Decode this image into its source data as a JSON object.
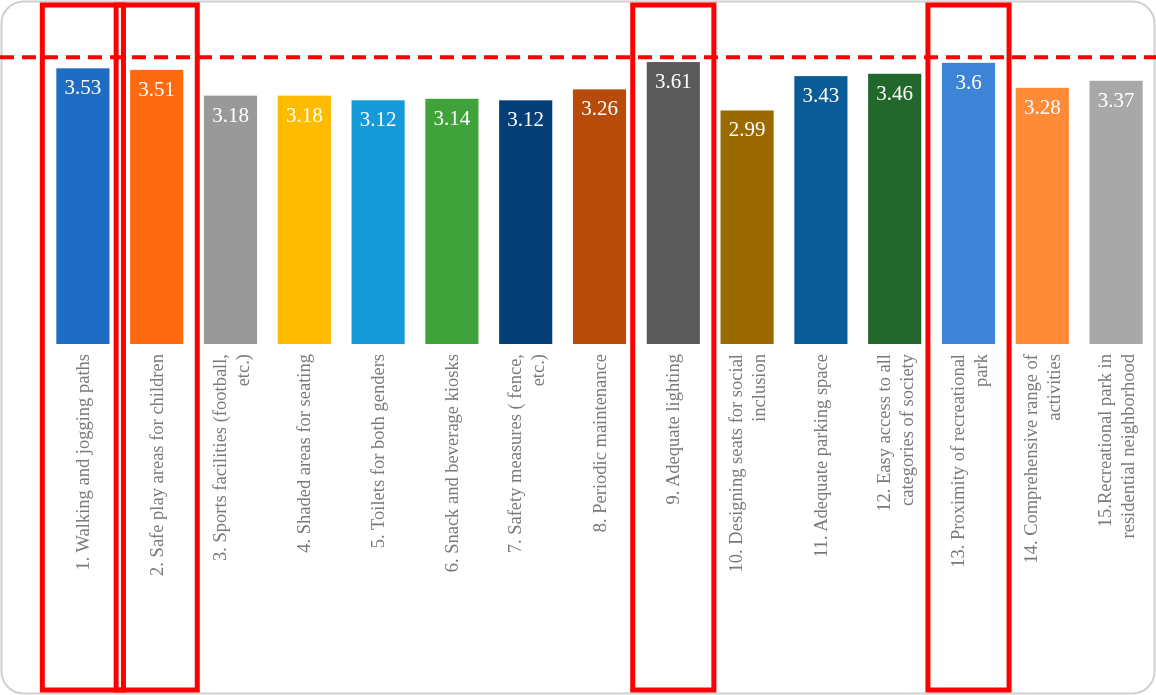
{
  "chart_data": {
    "type": "bar",
    "categories": [
      "1. Walking and jogging paths",
      "2. Safe play areas for children",
      "3. Sports facilities (football, etc.)",
      "4. Shaded areas for seating",
      "5. Toilets for both genders",
      "6. Snack and beverage kiosks",
      "7. Safety measures ( fence, etc.)",
      "8. Periodic maintenance",
      "9. Adequate lighting",
      "10. Designing seats for social inclusion",
      "11. Adequate parking space",
      "12. Easy access to all categories of society",
      "13. Proximity of recreational park",
      "14. Comprehensive range of activities",
      "15.Recreational park in residential neighborhood"
    ],
    "values": [
      3.53,
      3.51,
      3.18,
      3.18,
      3.12,
      3.14,
      3.12,
      3.26,
      3.61,
      2.99,
      3.43,
      3.46,
      3.6,
      3.28,
      3.37
    ],
    "colors": [
      "#1f6cc4",
      "#ff6a10",
      "#999999",
      "#ffbb00",
      "#149ad8",
      "#3fa23a",
      "#053f78",
      "#b84a0a",
      "#5a5a5a",
      "#9a6a00",
      "#0b5c96",
      "#22672b",
      "#3d84d6",
      "#ff8a38",
      "#a8a8a8"
    ],
    "data_labels": true,
    "ref_lines": [
      {
        "axis": "y",
        "value": 3.67,
        "color": "#ff0000",
        "line_style": "dashed"
      }
    ]
  }
}
